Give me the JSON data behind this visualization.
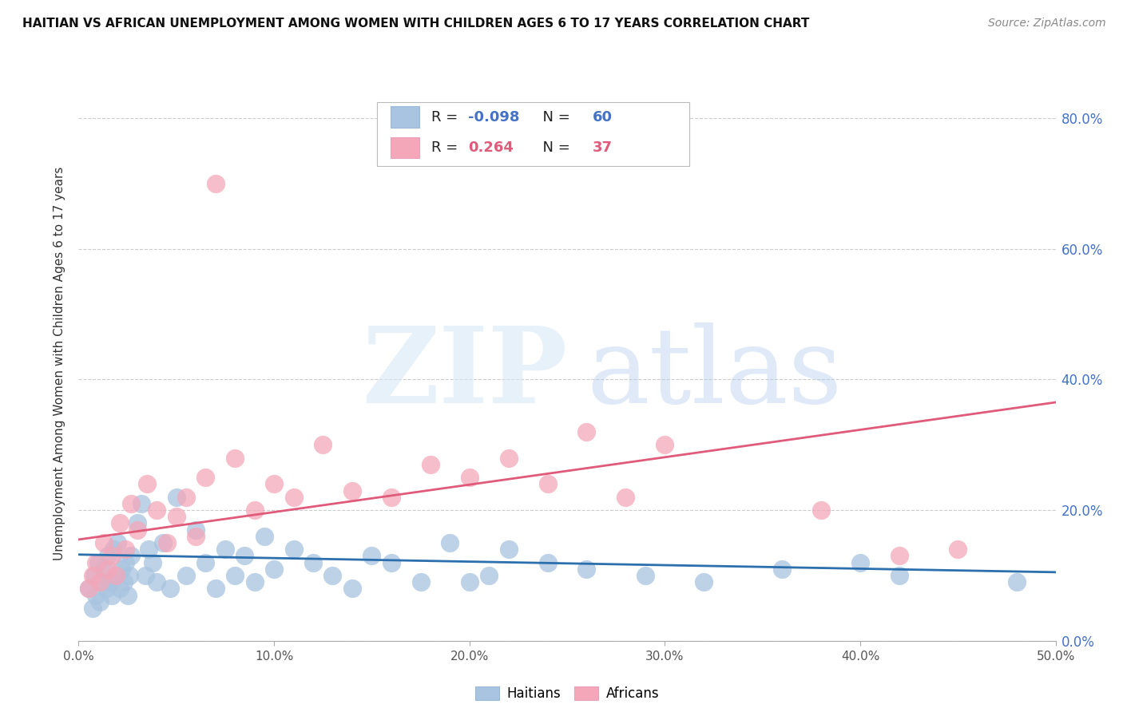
{
  "title": "HAITIAN VS AFRICAN UNEMPLOYMENT AMONG WOMEN WITH CHILDREN AGES 6 TO 17 YEARS CORRELATION CHART",
  "source": "Source: ZipAtlas.com",
  "ylabel": "Unemployment Among Women with Children Ages 6 to 17 years",
  "xlim": [
    0.0,
    0.5
  ],
  "ylim": [
    0.0,
    0.85
  ],
  "haitians_color": "#a8c4e0",
  "africans_color": "#f4a7b9",
  "haitians_line_color": "#2c6fad",
  "africans_line_color": "#e05a7a",
  "legend_haitian_label": "Haitians",
  "legend_african_label": "Africans",
  "R_haitian": -0.098,
  "N_haitian": 60,
  "R_african": 0.264,
  "N_african": 37,
  "background_color": "#ffffff",
  "haitians_x": [
    0.005,
    0.007,
    0.008,
    0.009,
    0.01,
    0.011,
    0.012,
    0.013,
    0.014,
    0.015,
    0.016,
    0.017,
    0.018,
    0.019,
    0.02,
    0.021,
    0.022,
    0.023,
    0.024,
    0.025,
    0.026,
    0.027,
    0.03,
    0.032,
    0.034,
    0.036,
    0.038,
    0.04,
    0.043,
    0.047,
    0.05,
    0.055,
    0.06,
    0.065,
    0.07,
    0.075,
    0.08,
    0.085,
    0.09,
    0.095,
    0.1,
    0.11,
    0.12,
    0.13,
    0.14,
    0.15,
    0.16,
    0.175,
    0.19,
    0.2,
    0.21,
    0.22,
    0.24,
    0.26,
    0.29,
    0.32,
    0.36,
    0.4,
    0.42,
    0.48
  ],
  "haitians_y": [
    0.08,
    0.05,
    0.1,
    0.07,
    0.12,
    0.06,
    0.09,
    0.11,
    0.08,
    0.13,
    0.09,
    0.07,
    0.14,
    0.1,
    0.15,
    0.08,
    0.11,
    0.09,
    0.12,
    0.07,
    0.1,
    0.13,
    0.18,
    0.21,
    0.1,
    0.14,
    0.12,
    0.09,
    0.15,
    0.08,
    0.22,
    0.1,
    0.17,
    0.12,
    0.08,
    0.14,
    0.1,
    0.13,
    0.09,
    0.16,
    0.11,
    0.14,
    0.12,
    0.1,
    0.08,
    0.13,
    0.12,
    0.09,
    0.15,
    0.09,
    0.1,
    0.14,
    0.12,
    0.11,
    0.1,
    0.09,
    0.11,
    0.12,
    0.1,
    0.09
  ],
  "africans_x": [
    0.005,
    0.007,
    0.009,
    0.011,
    0.013,
    0.015,
    0.017,
    0.019,
    0.021,
    0.024,
    0.027,
    0.03,
    0.035,
    0.04,
    0.045,
    0.05,
    0.055,
    0.06,
    0.065,
    0.07,
    0.08,
    0.09,
    0.1,
    0.11,
    0.125,
    0.14,
    0.16,
    0.18,
    0.2,
    0.22,
    0.24,
    0.26,
    0.28,
    0.3,
    0.38,
    0.42,
    0.45
  ],
  "africans_y": [
    0.08,
    0.1,
    0.12,
    0.09,
    0.15,
    0.11,
    0.13,
    0.1,
    0.18,
    0.14,
    0.21,
    0.17,
    0.24,
    0.2,
    0.15,
    0.19,
    0.22,
    0.16,
    0.25,
    0.7,
    0.28,
    0.2,
    0.24,
    0.22,
    0.3,
    0.23,
    0.22,
    0.27,
    0.25,
    0.28,
    0.24,
    0.32,
    0.22,
    0.3,
    0.2,
    0.13,
    0.14
  ],
  "haitian_line_x0": 0.0,
  "haitian_line_y0": 0.132,
  "haitian_line_x1": 0.5,
  "haitian_line_y1": 0.105,
  "african_line_x0": 0.0,
  "african_line_y0": 0.155,
  "african_line_x1": 0.5,
  "african_line_y1": 0.365
}
